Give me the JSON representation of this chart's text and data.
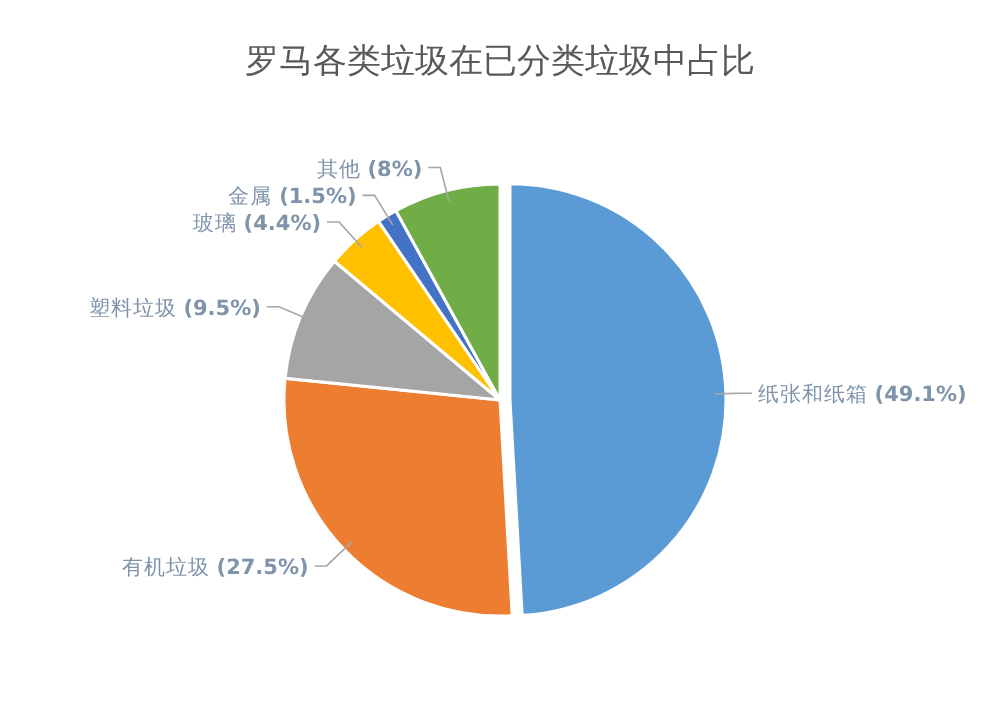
{
  "chart_data": {
    "type": "pie",
    "title": "罗马各类垃圾在已分类垃圾中占比",
    "categories": [
      "纸张和纸箱",
      "有机垃圾",
      "塑料垃圾",
      "玻璃",
      "金属",
      "其他"
    ],
    "values": [
      49.1,
      27.5,
      9.5,
      4.4,
      1.5,
      8
    ],
    "colors": [
      "#5b9bd5",
      "#ed7d31",
      "#a5a5a5",
      "#ffc000",
      "#4472c4",
      "#70ad47"
    ],
    "value_labels": [
      "(49.1%)",
      "(27.5%)",
      "(9.5%)",
      "(4.4%)",
      "(1.5%)",
      "(8%)"
    ]
  }
}
